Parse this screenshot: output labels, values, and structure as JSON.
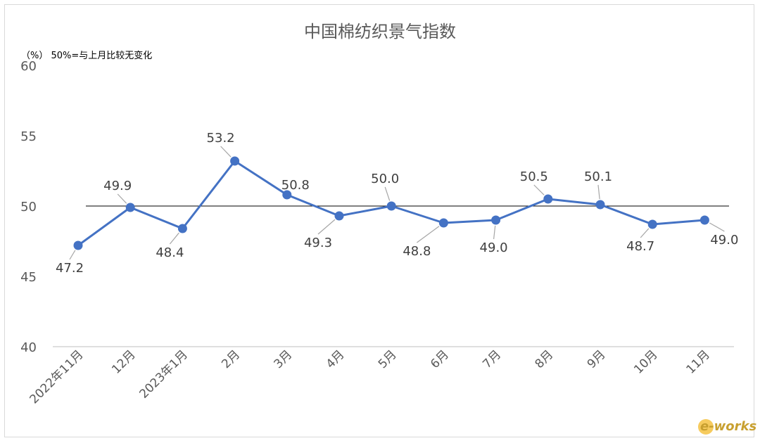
{
  "chart_data": {
    "type": "line",
    "title": "中国棉纺织景气指数",
    "note": "（%）  50%=与上月比较无变化",
    "categories": [
      "2022年11月",
      "12月",
      "2023年1月",
      "2月",
      "3月",
      "4月",
      "5月",
      "6月",
      "7月",
      "8月",
      "9月",
      "10月",
      "11月"
    ],
    "series": [
      {
        "values": [
          47.2,
          49.9,
          48.4,
          53.2,
          50.8,
          49.3,
          50.0,
          48.8,
          49.0,
          50.5,
          50.1,
          48.7,
          49.0
        ],
        "color": "#4472c4"
      }
    ],
    "data_labels": [
      "47.2",
      "49.9",
      "48.4",
      "53.2",
      "50.8",
      "49.3",
      "50.0",
      "48.8",
      "49.0",
      "50.5",
      "50.1",
      "48.7",
      "49.0"
    ],
    "yticks": [
      "40",
      "45",
      "50",
      "55",
      "60"
    ],
    "ylim": [
      40,
      60
    ],
    "reference_line": 50,
    "reference_color": "#000000",
    "axis_color": "#bfbfbf",
    "grid": false,
    "legend": "none"
  },
  "watermark": {
    "text": "e-works"
  }
}
